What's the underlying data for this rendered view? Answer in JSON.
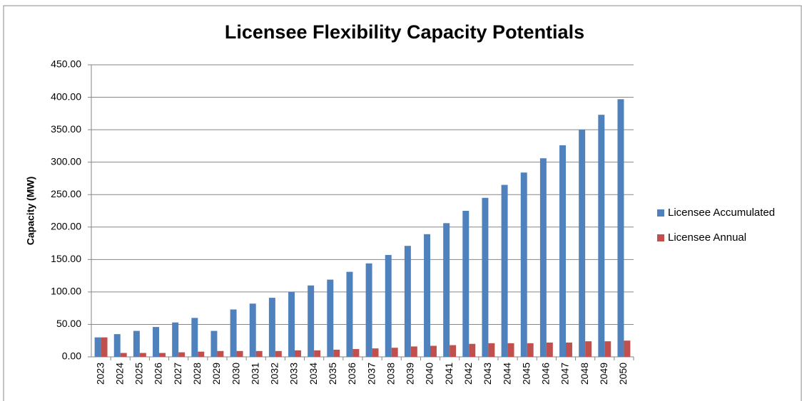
{
  "chart_data": {
    "type": "bar",
    "title": "Licensee Flexibility Capacity Potentials",
    "y_label": "Capacity (MW)",
    "categories": [
      "2023",
      "2024",
      "2025",
      "2026",
      "2027",
      "2028",
      "2029",
      "2030",
      "2031",
      "2032",
      "2033",
      "2034",
      "2035",
      "2036",
      "2037",
      "2038",
      "2039",
      "2040",
      "2041",
      "2042",
      "2043",
      "2044",
      "2045",
      "2046",
      "2047",
      "2048",
      "2049",
      "2050"
    ],
    "series": [
      {
        "name": "Licensee Accumulated",
        "color": "#4f81bd",
        "values": [
          30,
          35,
          40,
          46,
          53,
          60,
          40,
          73,
          82,
          91,
          100,
          110,
          119,
          131,
          144,
          157,
          171,
          189,
          206,
          225,
          245,
          265,
          284,
          306,
          326,
          350,
          373,
          397
        ]
      },
      {
        "name": "Licensee Annual",
        "color": "#c0504d",
        "values": [
          30,
          6,
          6,
          6,
          7,
          8,
          9,
          9,
          9,
          9,
          10,
          10,
          11,
          12,
          13,
          14,
          16,
          17,
          18,
          20,
          21,
          21,
          21,
          22,
          22,
          24,
          24,
          25
        ]
      }
    ],
    "ylim": [
      0,
      450
    ],
    "yticks": [
      {
        "value": 0,
        "label": "0.00"
      },
      {
        "value": 50,
        "label": "50.00"
      },
      {
        "value": 100,
        "label": "100.00"
      },
      {
        "value": 150,
        "label": "150.00"
      },
      {
        "value": 200,
        "label": "200.00"
      },
      {
        "value": 250,
        "label": "250.00"
      },
      {
        "value": 300,
        "label": "300.00"
      },
      {
        "value": 350,
        "label": "350.00"
      },
      {
        "value": 400,
        "label": "400.00"
      },
      {
        "value": 450,
        "label": "450.00"
      }
    ],
    "grid": true,
    "legend": "right"
  }
}
